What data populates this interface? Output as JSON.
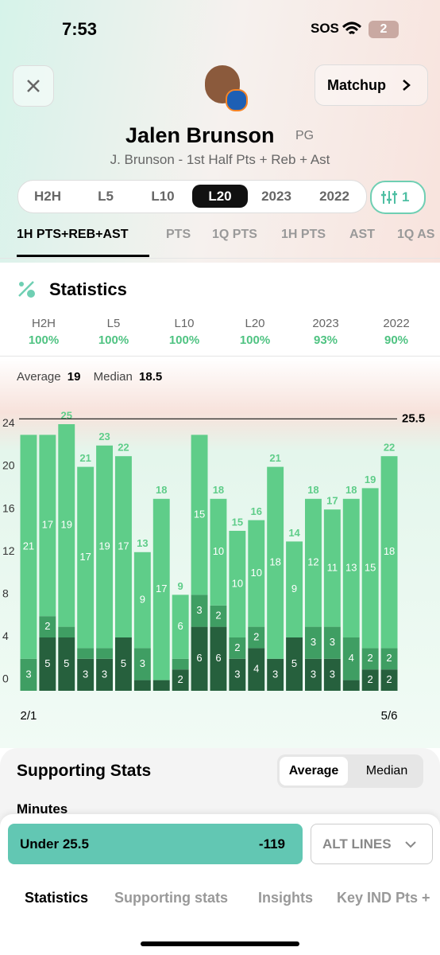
{
  "status_bar": {
    "time": "7:53",
    "sos": "SOS",
    "battery": "2"
  },
  "header": {
    "matchup": "Matchup",
    "player": "Jalen Brunson",
    "position": "PG",
    "subtitle": "J. Brunson - 1st Half Pts + Reb + Ast"
  },
  "range_tabs": [
    "H2H",
    "L5",
    "L10",
    "L20",
    "2023",
    "2022"
  ],
  "filter_count": "1",
  "stat_tabs": [
    "1H PTS+REB+AST",
    "PTS",
    "1Q PTS",
    "1H PTS",
    "AST",
    "1Q AS"
  ],
  "statistics": {
    "title": "Statistics",
    "items": [
      {
        "label": "H2H",
        "value": "100%"
      },
      {
        "label": "L5",
        "value": "100%"
      },
      {
        "label": "L10",
        "value": "100%"
      },
      {
        "label": "L20",
        "value": "100%"
      },
      {
        "label": "2023",
        "value": "93%"
      },
      {
        "label": "2022",
        "value": "90%"
      }
    ]
  },
  "summary": {
    "average_label": "Average",
    "average": 19,
    "median_label": "Median",
    "median": 18.5
  },
  "chart_data": {
    "type": "bar",
    "stacked": true,
    "categories": [
      "2/1",
      null,
      null,
      null,
      null,
      null,
      null,
      null,
      null,
      null,
      null,
      null,
      null,
      null,
      null,
      null,
      null,
      null,
      null,
      "5/6"
    ],
    "series": [
      {
        "color": "#26603d",
        "values": [
          0,
          5,
          5,
          3,
          3,
          5,
          1,
          1,
          2,
          6,
          6,
          3,
          4,
          3,
          5,
          3,
          3,
          1,
          2,
          2
        ]
      },
      {
        "color": "#3f9e63",
        "values": [
          3,
          2,
          1,
          1,
          1,
          0,
          3,
          0,
          1,
          3,
          2,
          2,
          2,
          0,
          0,
          3,
          3,
          4,
          2,
          2
        ]
      },
      {
        "color": "#5fcd89",
        "values": [
          21,
          17,
          19,
          17,
          19,
          17,
          9,
          17,
          6,
          15,
          10,
          10,
          10,
          18,
          9,
          12,
          11,
          13,
          15,
          18
        ]
      }
    ],
    "totals": [
      null,
      null,
      25,
      21,
      23,
      22,
      13,
      18,
      9,
      null,
      18,
      15,
      16,
      21,
      14,
      18,
      17,
      18,
      19,
      22
    ],
    "threshold": 25.5,
    "ylim": [
      0,
      26
    ],
    "yticks": [
      0,
      4,
      8,
      12,
      16,
      20,
      24
    ]
  },
  "supporting": {
    "title": "Supporting Stats",
    "toggle": [
      "Average",
      "Median"
    ],
    "minutes": "Minutes"
  },
  "bet": {
    "label": "Under 25.5",
    "odds": "-119",
    "alt": "ALT LINES"
  },
  "bottom_tabs": [
    "Statistics",
    "Supporting stats",
    "Insights",
    "Key IND Pts +"
  ]
}
